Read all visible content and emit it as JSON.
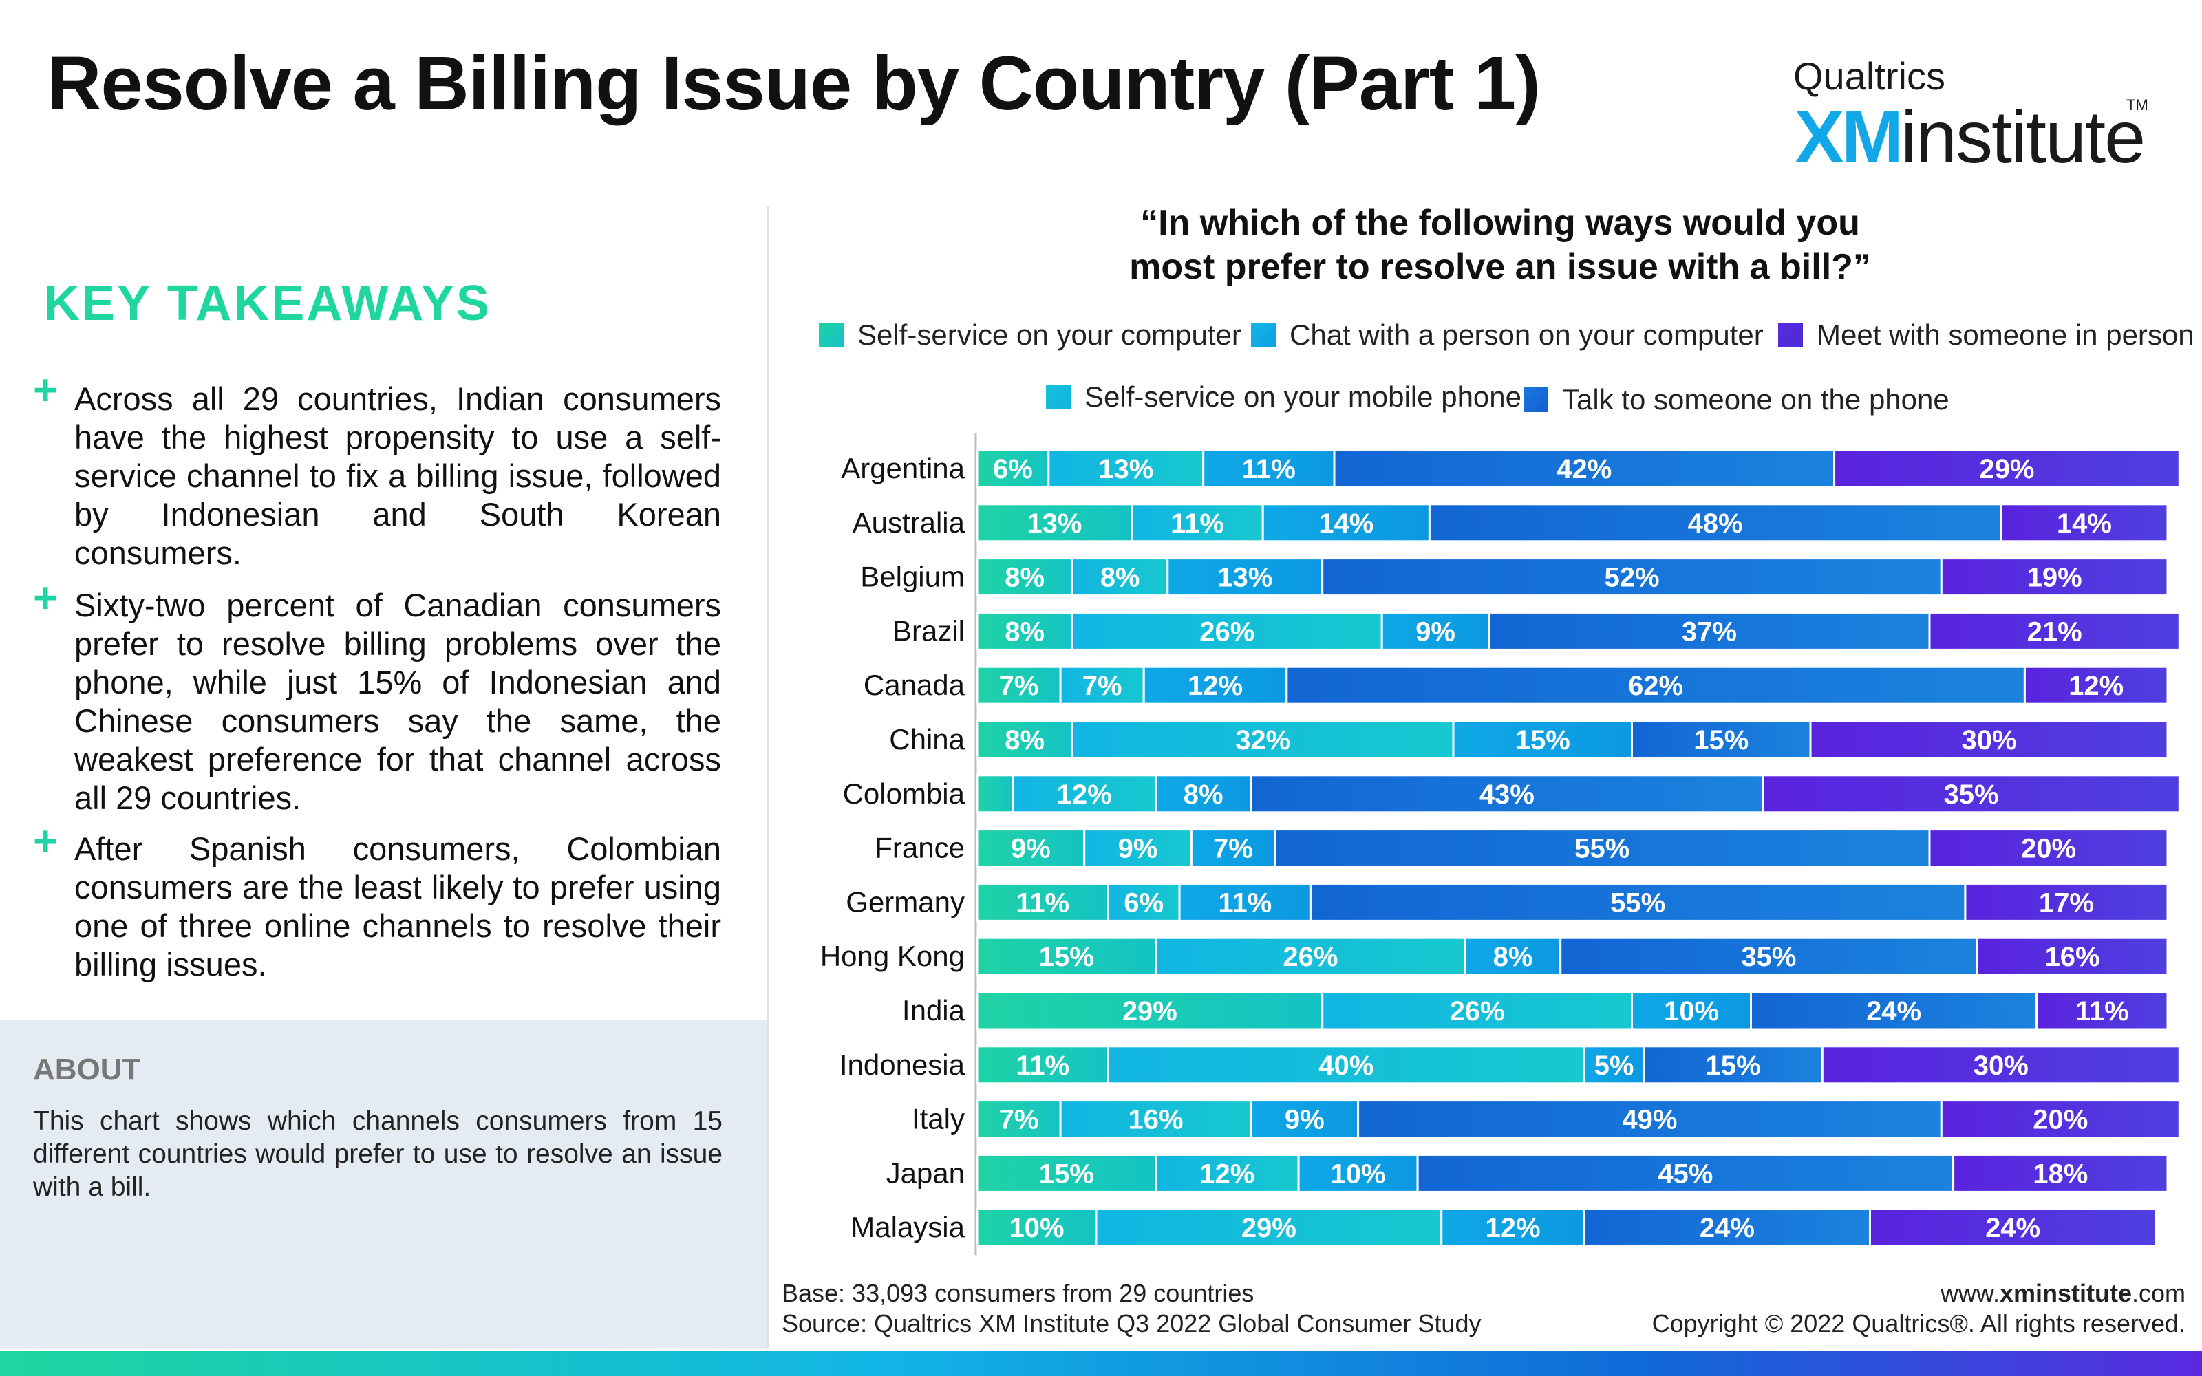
{
  "header": {
    "title": "Resolve a Billing Issue by Country (Part 1)",
    "logo_top": "Qualtrics",
    "logo_xm": "XM",
    "logo_institute": "institute",
    "logo_tm": "TM"
  },
  "takeaways": {
    "title": "KEY TAKEAWAYS",
    "plus": "+",
    "items": [
      "Across all 29 countries, Indian consumers have the highest propensity to use a self-service channel to fix a billing issue, followed by Indonesian and South Korean consumers.",
      "Sixty-two percent of Canadian consumers prefer to resolve billing problems over the phone, while just 15% of Indonesian and Chinese consumers say the same, the weakest preference for that channel across all 29 countries.",
      "After Spanish consumers, Colombian consumers are the least likely to prefer using one of three online channels to resolve their billing issues."
    ]
  },
  "about": {
    "title": "ABOUT",
    "text": "This chart shows which channels consumers from 15 different countries would prefer to use to resolve an issue with a bill."
  },
  "footer": {
    "base": "Base: 33,093 consumers from 29 countries",
    "source": "Source: Qualtrics XM Institute Q3 2022 Global Consumer Study",
    "site_prefix": "www.",
    "site_bold": "xminstitute",
    "site_suffix": ".com",
    "copyright": "Copyright © 2022 Qualtrics®. All rights reserved."
  },
  "chart_data": {
    "type": "bar",
    "orientation": "horizontal",
    "stacked": true,
    "title": "“In which of the following ways would you most prefer to resolve an issue with a bill?”",
    "title_lines": [
      "“In which of the following ways would you",
      "most prefer to resolve an issue with a bill?”"
    ],
    "categories": [
      "Argentina",
      "Australia",
      "Belgium",
      "Brazil",
      "Canada",
      "China",
      "Colombia",
      "France",
      "Germany",
      "Hong Kong",
      "India",
      "Indonesia",
      "Italy",
      "Japan",
      "Malaysia"
    ],
    "series": [
      {
        "name": "Self-service on your computer",
        "color": "#20d3a5",
        "values": [
          6,
          13,
          8,
          8,
          7,
          8,
          3,
          9,
          11,
          15,
          29,
          11,
          7,
          15,
          10
        ]
      },
      {
        "name": "Self-service on your mobile phone",
        "color": "#13bcdf",
        "values": [
          13,
          11,
          8,
          26,
          7,
          32,
          12,
          9,
          6,
          26,
          26,
          40,
          16,
          12,
          29
        ]
      },
      {
        "name": "Chat with a person on your computer",
        "color": "#0ea7e5",
        "values": [
          11,
          14,
          13,
          9,
          12,
          15,
          8,
          7,
          11,
          8,
          10,
          5,
          9,
          10,
          12
        ]
      },
      {
        "name": "Talk to someone on the phone",
        "color": "#1569d6",
        "values": [
          42,
          48,
          52,
          37,
          62,
          15,
          43,
          55,
          55,
          35,
          24,
          15,
          49,
          45,
          24
        ]
      },
      {
        "name": "Meet with someone in person",
        "color": "#5a2ae0",
        "values": [
          29,
          14,
          19,
          21,
          12,
          30,
          35,
          20,
          17,
          16,
          11,
          30,
          20,
          18,
          24
        ]
      }
    ],
    "data_labels": [
      [
        "6%",
        "13%",
        "11%",
        "42%",
        "29%"
      ],
      [
        "13%",
        "11%",
        "14%",
        "48%",
        "14%"
      ],
      [
        "8%",
        "8%",
        "13%",
        "52%",
        "19%"
      ],
      [
        "8%",
        "26%",
        "9%",
        "37%",
        "21%"
      ],
      [
        "7%",
        "7%",
        "12%",
        "62%",
        "12%"
      ],
      [
        "8%",
        "32%",
        "15%",
        "15%",
        "30%"
      ],
      [
        "",
        "12%",
        "8%",
        "43%",
        "35%"
      ],
      [
        "9%",
        "9%",
        "7%",
        "55%",
        "20%"
      ],
      [
        "11%",
        "6%",
        "11%",
        "55%",
        "17%"
      ],
      [
        "15%",
        "26%",
        "8%",
        "35%",
        "16%"
      ],
      [
        "29%",
        "26%",
        "10%",
        "24%",
        "11%"
      ],
      [
        "11%",
        "40%",
        "5%",
        "15%",
        "30%"
      ],
      [
        "7%",
        "16%",
        "9%",
        "49%",
        "20%"
      ],
      [
        "15%",
        "12%",
        "10%",
        "45%",
        "18%"
      ],
      [
        "10%",
        "29%",
        "12%",
        "24%",
        "24%"
      ]
    ],
    "legend_order": [
      "Self-service on your computer",
      "Chat with a person on your computer",
      "Meet with someone in person",
      "Self-service on your mobile phone",
      "Talk to someone on the phone"
    ],
    "legend_position": "top",
    "xlim": [
      0,
      100
    ],
    "grid": false
  }
}
